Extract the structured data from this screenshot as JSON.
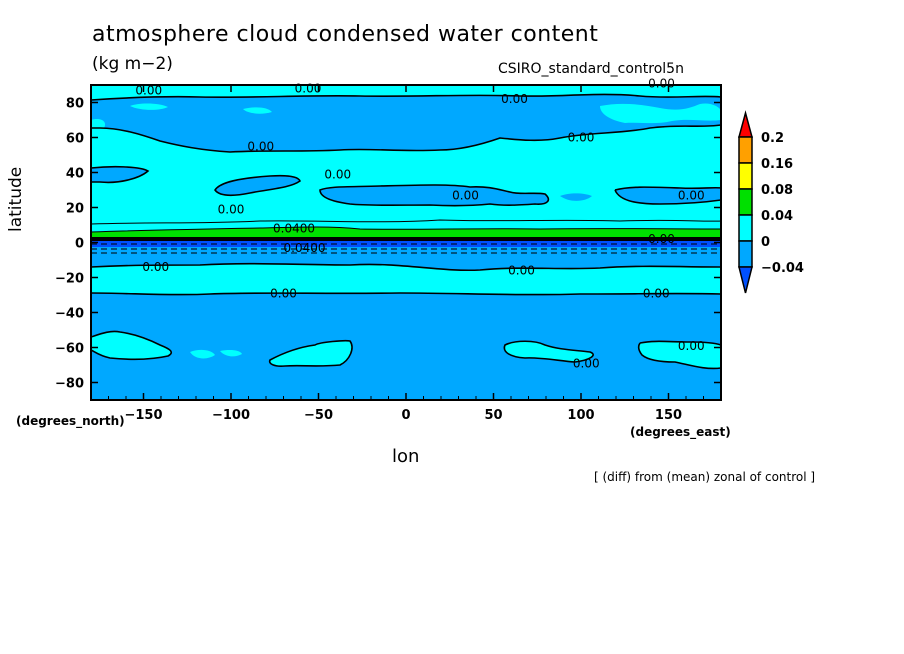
{
  "chart_data": {
    "type": "heatmap",
    "subtype": "filled-contour-map",
    "title": "atmosphere cloud condensed water content",
    "units": "(kg m−2)",
    "source_label": "CSIRO_standard_control5n",
    "note": "[ (diff) from (mean) zonal of control ]",
    "xlabel": "lon",
    "ylabel": "latitude",
    "x_units": "(degrees_east)",
    "y_units": "(degrees_north)",
    "xlim": [
      -180,
      180
    ],
    "ylim": [
      -90,
      90
    ],
    "x_ticks": [
      -150,
      -100,
      -50,
      0,
      50,
      100,
      150
    ],
    "x_tick_labels": [
      "−150",
      "−100",
      "−50",
      "0",
      "50",
      "100",
      "150"
    ],
    "y_ticks": [
      80,
      60,
      40,
      20,
      0,
      -20,
      -40,
      -60,
      -80
    ],
    "y_tick_labels": [
      "80",
      "60",
      "40",
      "20",
      "0",
      "−20",
      "−40",
      "−60",
      "−80"
    ],
    "legend": {
      "levels": [
        0.2,
        0.16,
        0.08,
        0.04,
        0,
        -0.04
      ],
      "level_labels": [
        "0.2",
        "0.16",
        "0.08",
        "0.04",
        "0",
        "−0.04"
      ],
      "colors": [
        "#ff0000",
        "#ffa000",
        "#ffff00",
        "#00e000",
        "#00ffff",
        "#00a8ff",
        "#0050ff"
      ],
      "extend": "both"
    },
    "contour_labels": [
      {
        "text": "0.00",
        "lon": -147,
        "lat": 87
      },
      {
        "text": "0.00",
        "lon": -56,
        "lat": 88
      },
      {
        "text": "0.00",
        "lon": 62,
        "lat": 82
      },
      {
        "text": "0.00",
        "lon": 146,
        "lat": 91
      },
      {
        "text": "0.00",
        "lon": -83,
        "lat": 55
      },
      {
        "text": "0.00",
        "lon": 100,
        "lat": 60
      },
      {
        "text": "0.00",
        "lon": -39,
        "lat": 39
      },
      {
        "text": "0.00",
        "lon": 34,
        "lat": 27
      },
      {
        "text": "0.00",
        "lon": 163,
        "lat": 27
      },
      {
        "text": "0.00",
        "lon": -100,
        "lat": 19
      },
      {
        "text": "0.0400",
        "lon": -64,
        "lat": 8
      },
      {
        "text": "0.0400",
        "lon": -58,
        "lat": -3
      },
      {
        "text": "0.00",
        "lon": 146,
        "lat": 2
      },
      {
        "text": "0.00",
        "lon": -143,
        "lat": -14
      },
      {
        "text": "0.00",
        "lon": 66,
        "lat": -16
      },
      {
        "text": "0.00",
        "lon": -70,
        "lat": -29
      },
      {
        "text": "0.00",
        "lon": 143,
        "lat": -29
      },
      {
        "text": "0.00",
        "lon": 103,
        "lat": -69
      },
      {
        "text": "0.00",
        "lon": 163,
        "lat": -59
      }
    ]
  }
}
